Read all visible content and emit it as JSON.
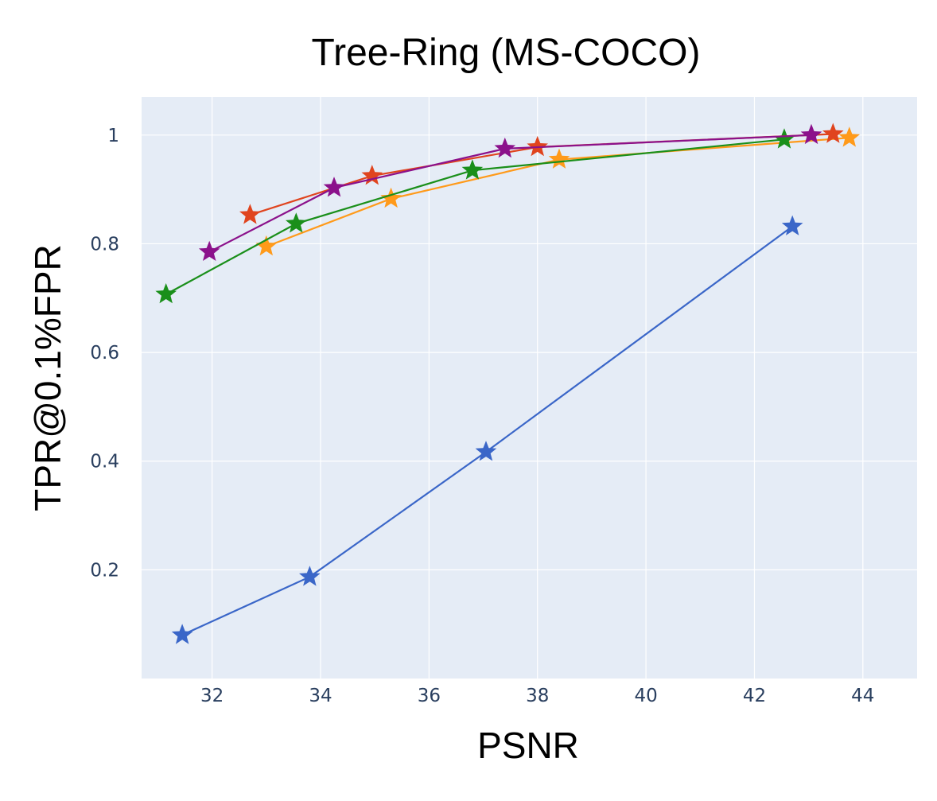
{
  "chart_data": {
    "type": "line",
    "title": "Tree-Ring (MS-COCO)",
    "xlabel": "PSNR",
    "ylabel": "TPR@0.1%FPR",
    "xlim": [
      30.7,
      45.0
    ],
    "ylim": [
      0.0,
      1.07
    ],
    "x_ticks": [
      32,
      34,
      36,
      38,
      40,
      42,
      44
    ],
    "y_ticks": [
      0.2,
      0.4,
      0.6,
      0.8,
      1
    ],
    "x_tick_labels": [
      "32",
      "34",
      "36",
      "38",
      "40",
      "42",
      "44"
    ],
    "y_tick_labels": [
      "0.2",
      "0.4",
      "0.6",
      "0.8",
      "1"
    ],
    "grid": true,
    "legend": "none",
    "marker": "star",
    "plot_bg": "#e5ecf6",
    "series": [
      {
        "color": "#3a66c8",
        "x": [
          31.45,
          33.8,
          37.05,
          42.7
        ],
        "y": [
          0.08,
          0.187,
          0.417,
          0.832
        ]
      },
      {
        "color": "#ff9a1a",
        "x": [
          33.0,
          35.3,
          38.4,
          43.75
        ],
        "y": [
          0.795,
          0.883,
          0.955,
          0.995
        ]
      },
      {
        "color": "#1a8f1a",
        "x": [
          31.15,
          33.55,
          36.8,
          42.55
        ],
        "y": [
          0.707,
          0.837,
          0.935,
          0.992
        ]
      },
      {
        "color": "#e0441e",
        "x": [
          32.7,
          34.95,
          38.0,
          43.45
        ],
        "y": [
          0.853,
          0.925,
          0.978,
          1.002
        ]
      },
      {
        "color": "#8b118b",
        "x": [
          31.95,
          34.25,
          37.4,
          43.05
        ],
        "y": [
          0.785,
          0.903,
          0.975,
          1.0
        ]
      }
    ]
  }
}
